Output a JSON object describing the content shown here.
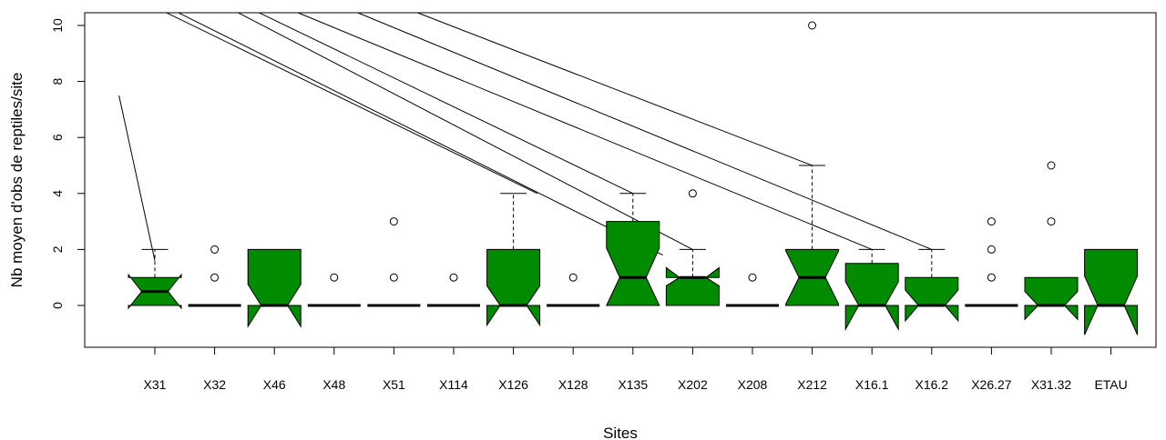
{
  "chart_data": {
    "type": "boxplot",
    "notched": true,
    "xlabel": "Sites",
    "ylabel": "Nb moyen d'obs de reptiles/site",
    "ylim": [
      -1.5,
      10.5
    ],
    "yticks": [
      0,
      2,
      4,
      6,
      8,
      10
    ],
    "box_color": "#008B00",
    "categories": [
      "X31",
      "X32",
      "X46",
      "X48",
      "X51",
      "X114",
      "X126",
      "X128",
      "X135",
      "X202",
      "X208",
      "X212",
      "X16.1",
      "X16.2",
      "X26.27",
      "X31.32",
      "ETAU"
    ],
    "boxes": [
      {
        "q1": 0,
        "median": 0.5,
        "q3": 1,
        "lo": 0,
        "hi": 2,
        "notch_lo": -0.1,
        "notch_hi": 1.1,
        "outliers": []
      },
      {
        "q1": 0,
        "median": 0,
        "q3": 0,
        "lo": 0,
        "hi": 0,
        "notch_lo": 0,
        "notch_hi": 0,
        "outliers": [
          1,
          2
        ]
      },
      {
        "q1": 0,
        "median": 0,
        "q3": 2,
        "lo": 0,
        "hi": 2,
        "notch_lo": -0.75,
        "notch_hi": 0.75,
        "outliers": []
      },
      {
        "q1": 0,
        "median": 0,
        "q3": 0,
        "lo": 0,
        "hi": 0,
        "notch_lo": 0,
        "notch_hi": 0,
        "outliers": [
          1
        ]
      },
      {
        "q1": 0,
        "median": 0,
        "q3": 0,
        "lo": 0,
        "hi": 0,
        "notch_lo": 0,
        "notch_hi": 0,
        "outliers": [
          1,
          3
        ]
      },
      {
        "q1": 0,
        "median": 0,
        "q3": 0,
        "lo": 0,
        "hi": 0,
        "notch_lo": 0,
        "notch_hi": 0,
        "outliers": [
          1
        ]
      },
      {
        "q1": 0,
        "median": 0,
        "q3": 2,
        "lo": 0,
        "hi": 4,
        "notch_lo": -0.7,
        "notch_hi": 0.7,
        "outliers": []
      },
      {
        "q1": 0,
        "median": 0,
        "q3": 0,
        "lo": 0,
        "hi": 0,
        "notch_lo": 0,
        "notch_hi": 0,
        "outliers": [
          1
        ]
      },
      {
        "q1": 0,
        "median": 1,
        "q3": 3,
        "lo": 0,
        "hi": 4,
        "notch_lo": 0,
        "notch_hi": 2.05,
        "outliers": []
      },
      {
        "q1": 0,
        "median": 1,
        "q3": 1,
        "lo": 0,
        "hi": 2,
        "notch_lo": 0.7,
        "notch_hi": 1.35,
        "outliers": [
          4
        ]
      },
      {
        "q1": 0,
        "median": 0,
        "q3": 0,
        "lo": 0,
        "hi": 0,
        "notch_lo": 0,
        "notch_hi": 0,
        "outliers": [
          1
        ]
      },
      {
        "q1": 0,
        "median": 1,
        "q3": 2,
        "lo": 0,
        "hi": 5,
        "notch_lo": 0.05,
        "notch_hi": 1.95,
        "outliers": [
          10
        ]
      },
      {
        "q1": 0,
        "median": 0,
        "q3": 1.5,
        "lo": 0,
        "hi": 2,
        "notch_lo": -0.85,
        "notch_hi": 0.85,
        "outliers": []
      },
      {
        "q1": 0,
        "median": 0,
        "q3": 1,
        "lo": 0,
        "hi": 2,
        "notch_lo": -0.55,
        "notch_hi": 0.55,
        "outliers": []
      },
      {
        "q1": 0,
        "median": 0,
        "q3": 0,
        "lo": 0,
        "hi": 0,
        "notch_lo": 0,
        "notch_hi": 0,
        "outliers": [
          1,
          2,
          3
        ]
      },
      {
        "q1": 0,
        "median": 0,
        "q3": 1,
        "lo": 0,
        "hi": 1,
        "notch_lo": -0.5,
        "notch_hi": 0.5,
        "outliers": [
          3,
          5
        ]
      },
      {
        "q1": 0,
        "median": 0,
        "q3": 2,
        "lo": 0,
        "hi": 2,
        "notch_lo": -1.05,
        "notch_hi": 1.05,
        "outliers": []
      }
    ],
    "extra_lines": [
      {
        "from": [
          0.4,
          7.5
        ],
        "to": [
          1,
          1.6
        ]
      },
      {
        "from": [
          1.4,
          10.45
        ],
        "to": [
          9.5,
          1.8
        ]
      },
      {
        "from": [
          2.4,
          10.45
        ],
        "to": [
          10,
          2
        ]
      },
      {
        "from": [
          2.75,
          10.45
        ],
        "to": [
          9,
          4
        ]
      },
      {
        "from": [
          3.4,
          10.45
        ],
        "to": [
          13,
          2
        ]
      },
      {
        "from": [
          4.4,
          10.45
        ],
        "to": [
          14,
          2
        ]
      },
      {
        "from": [
          5.4,
          10.45
        ],
        "to": [
          12,
          5
        ]
      },
      {
        "from": [
          1.2,
          10.45
        ],
        "to": [
          7.4,
          4
        ]
      }
    ]
  }
}
